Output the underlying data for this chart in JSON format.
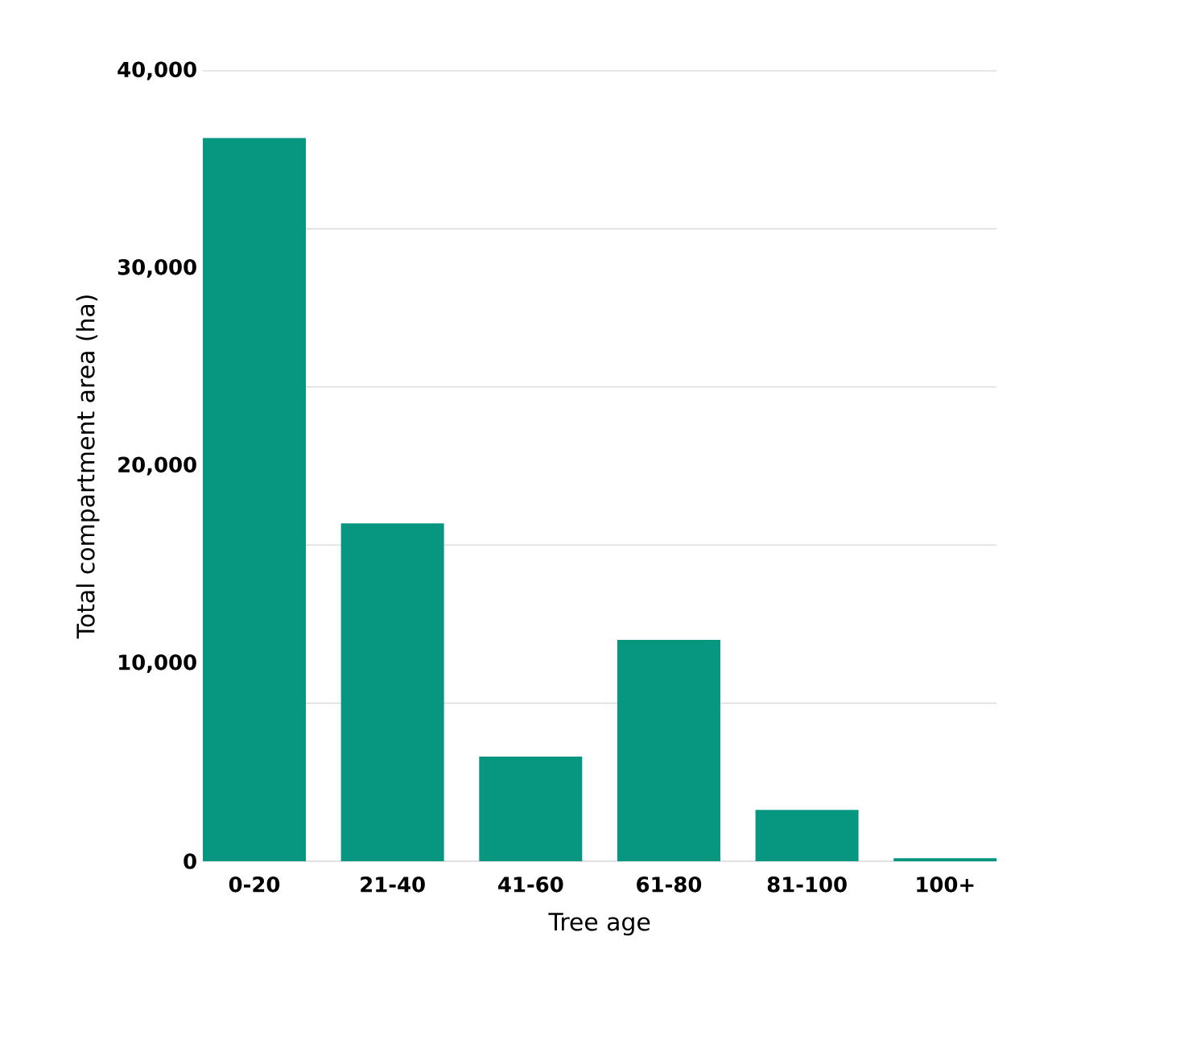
{
  "chart_data": {
    "type": "bar",
    "xlabel": "Tree age",
    "ylabel": "Total compartment area (ha)",
    "categories": [
      "0-20",
      "21-40",
      "41-60",
      "61-80",
      "81-100",
      "100+"
    ],
    "values": [
      36600,
      17100,
      5300,
      11200,
      2600,
      150
    ],
    "color": "#07967f",
    "ylim": [
      0,
      40000
    ],
    "yticks": [
      {
        "value": 0,
        "label": "0"
      },
      {
        "value": 8000,
        "label": null
      },
      {
        "value": 10000,
        "label": "10,000"
      },
      {
        "value": 16000,
        "label": null
      },
      {
        "value": 20000,
        "label": "20,000"
      },
      {
        "value": 24000,
        "label": null
      },
      {
        "value": 30000,
        "label": "30,000"
      },
      {
        "value": 32000,
        "label": null
      },
      {
        "value": 40000,
        "label": "40,000"
      }
    ],
    "grid": "y"
  }
}
